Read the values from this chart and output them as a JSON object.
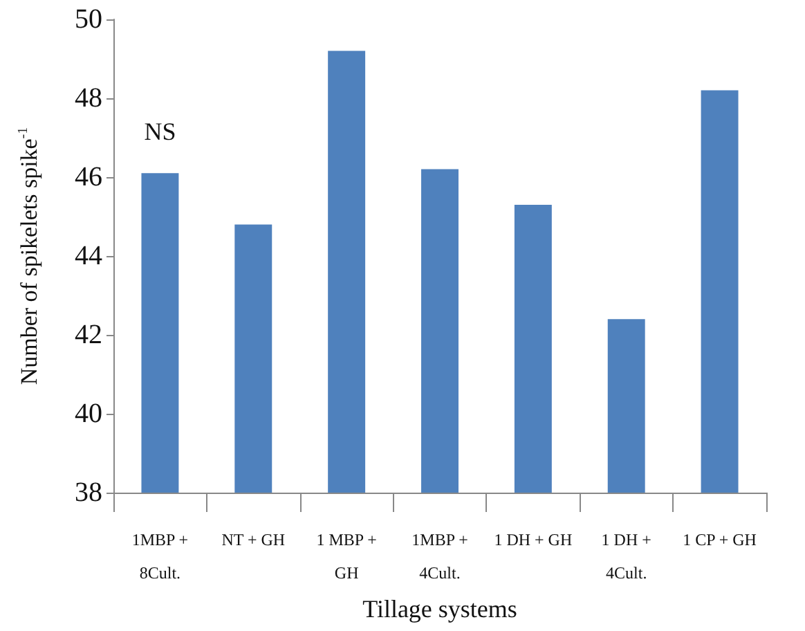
{
  "chart_data": {
    "type": "bar",
    "xlabel": "Tillage systems",
    "ylabel": "Number of spikelets spike$^{-1}$",
    "categories": [
      "1MBP +\n8Cult.",
      "NT + GH",
      "1 MBP +\nGH",
      "1MBP +\n4Cult.",
      "1 DH + GH",
      "1 DH +\n4Cult.",
      "1 CP + GH"
    ],
    "values": [
      46.1,
      44.8,
      49.2,
      46.2,
      45.3,
      42.4,
      48.2
    ],
    "color": "#4f81bd",
    "ylim": [
      38,
      50
    ],
    "yticks": [
      38,
      40,
      42,
      44,
      46,
      48,
      50
    ],
    "grid": false,
    "annotations": [
      "NS"
    ]
  }
}
